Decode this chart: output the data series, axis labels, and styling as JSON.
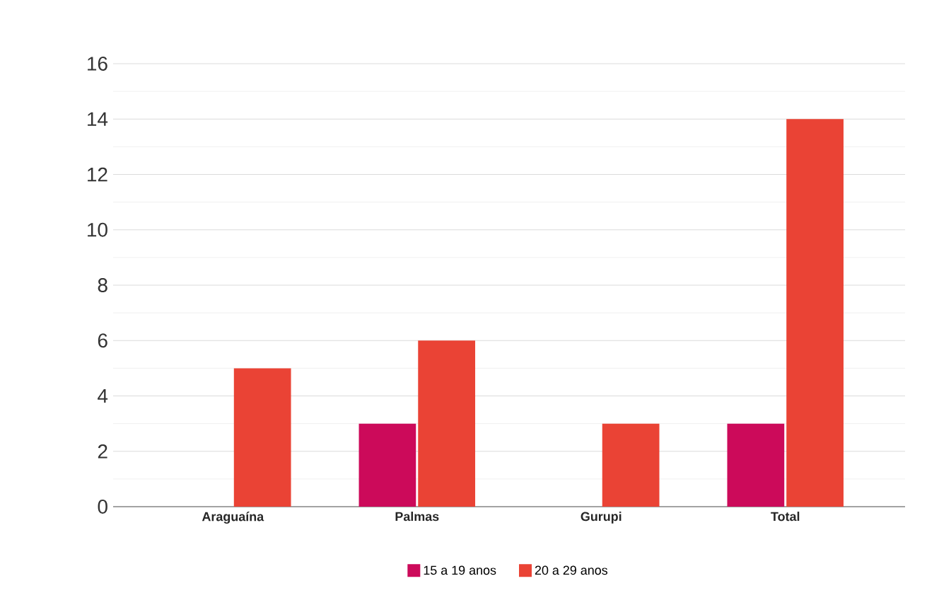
{
  "chart_data": {
    "type": "bar",
    "categories": [
      "Araguaína",
      "Palmas",
      "Gurupi",
      "Total"
    ],
    "series": [
      {
        "name": "15 a 19 anos",
        "color": "#cc0a5a",
        "values": [
          0,
          3,
          0,
          3
        ]
      },
      {
        "name": "20 a 29 anos",
        "color": "#ea4335",
        "values": [
          5,
          6,
          3,
          14
        ]
      }
    ],
    "ylim": [
      0,
      16
    ],
    "yticks": [
      0,
      2,
      4,
      6,
      8,
      10,
      12,
      14,
      16
    ],
    "grid": "y",
    "legend": "bottom"
  }
}
